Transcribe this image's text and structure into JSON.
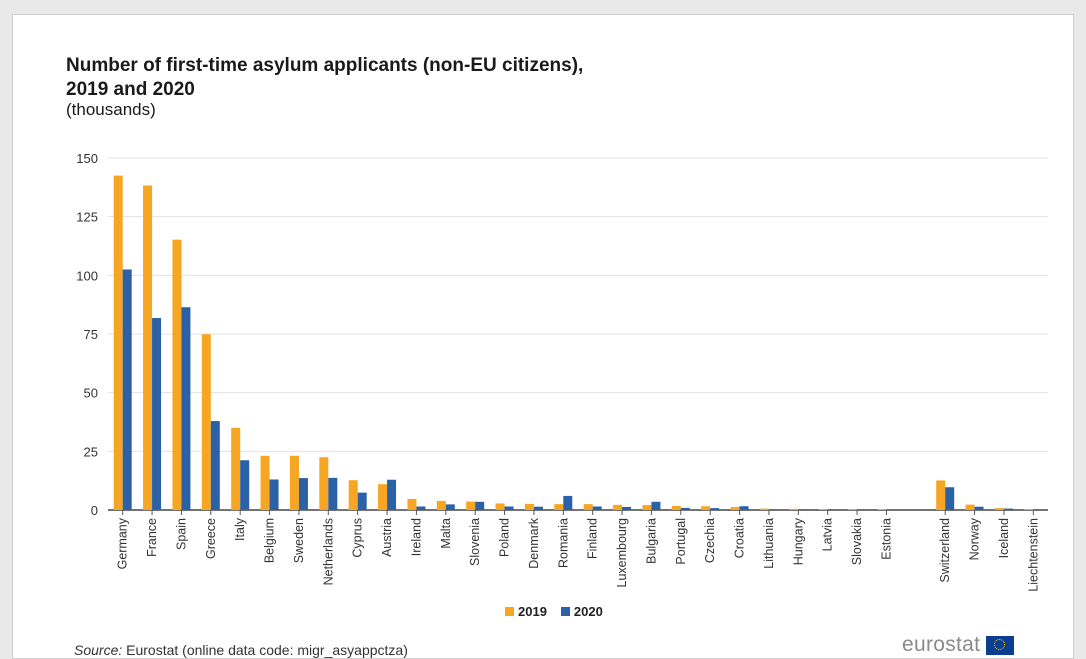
{
  "chart_data": {
    "type": "bar",
    "title_line1": "Number of first-time asylum applicants (non-EU citizens),",
    "title_line2": "2019 and 2020",
    "subtitle": "(thousands)",
    "ylim": [
      0,
      150
    ],
    "yticks": [
      0,
      25,
      50,
      75,
      100,
      125,
      150
    ],
    "grid": true,
    "legend_placement": "bottom-center",
    "categories": [
      "Germany",
      "France",
      "Spain",
      "Greece",
      "Italy",
      "Belgium",
      "Sweden",
      "Netherlands",
      "Cyprus",
      "Austria",
      "Ireland",
      "Malta",
      "Slovenia",
      "Poland",
      "Denmark",
      "Romania",
      "Finland",
      "Luxembourg",
      "Bulgaria",
      "Portugal",
      "Czechia",
      "Croatia",
      "Lithuania",
      "Hungary",
      "Latvia",
      "Slovakia",
      "Estonia",
      "",
      "Switzerland",
      "Norway",
      "Iceland",
      "Liechtenstein"
    ],
    "series": [
      {
        "name": "2019",
        "color": "#f6a623",
        "values": [
          142.5,
          138.3,
          115.2,
          74.9,
          35.0,
          23.1,
          23.1,
          22.5,
          12.7,
          11.0,
          4.7,
          3.9,
          3.6,
          2.8,
          2.6,
          2.5,
          2.5,
          2.2,
          2.1,
          1.7,
          1.6,
          1.3,
          0.6,
          0.5,
          0.2,
          0.2,
          0.1,
          null,
          12.6,
          2.3,
          0.8,
          0.04
        ]
      },
      {
        "name": "2020",
        "color": "#2a61a7",
        "values": [
          102.5,
          81.8,
          86.4,
          37.9,
          21.2,
          13.0,
          13.6,
          13.7,
          7.4,
          12.9,
          1.5,
          2.4,
          3.5,
          1.5,
          1.4,
          6.0,
          1.5,
          1.3,
          3.5,
          0.9,
          0.8,
          1.6,
          0.3,
          0.1,
          0.1,
          0.3,
          0.0,
          null,
          9.7,
          1.4,
          0.6,
          0.02
        ]
      }
    ]
  },
  "source": {
    "label": "Source:",
    "text": "Eurostat (online data code: migr_asyappctza)"
  },
  "brand": {
    "name": "eurostat"
  }
}
